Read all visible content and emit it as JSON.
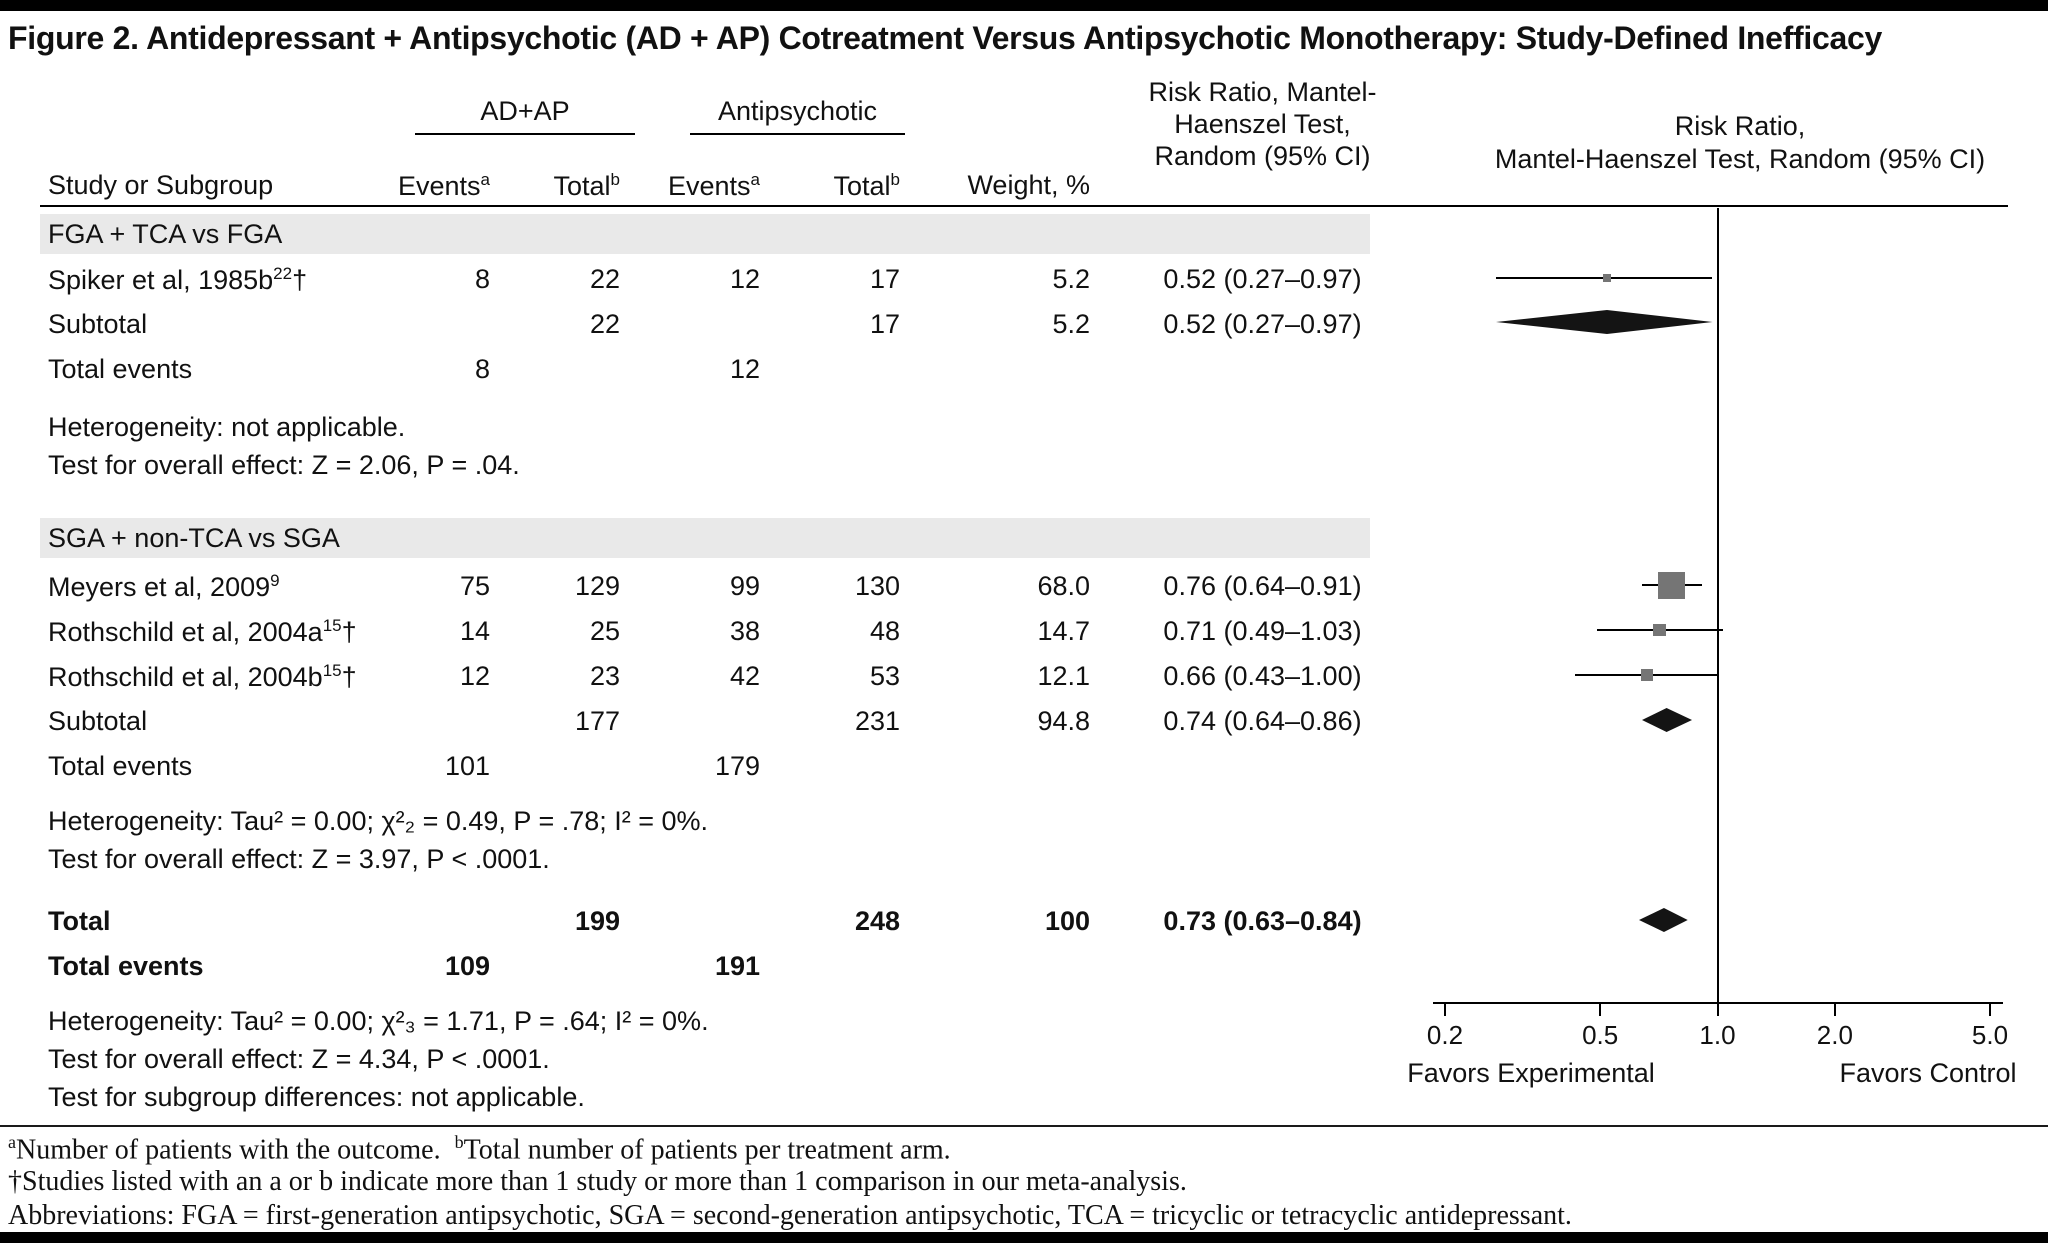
{
  "figure": {
    "title": "Figure 2. Antidepressant + Antipsychotic (AD + AP) Cotreatment Versus Antipsychotic Monotherapy: Study-Defined Inefficacy"
  },
  "table": {
    "col_group1": "AD+AP",
    "col_group2": "Antipsychotic",
    "col_study": "Study or Subgroup",
    "col_events": "Events",
    "col_events_sup": "a",
    "col_total": "Total",
    "col_total_sup": "b",
    "col_weight": "Weight, %",
    "col_rr_line1": "Risk Ratio, Mantel-",
    "col_rr_line2": "Haenszel Test,",
    "col_rr_line3": "Random (95% CI)",
    "col_plot_line1": "Risk Ratio,",
    "col_plot_line2": "Mantel-Haenszel Test, Random (95% CI)",
    "section1": {
      "band": "FGA + TCA vs FGA",
      "row1": {
        "study": "Spiker et al, 1985b",
        "sup": "22",
        "dagger": "†",
        "e1": "8",
        "t1": "22",
        "e2": "12",
        "t2": "17",
        "w": "5.2",
        "rr": "0.52 (0.27–0.97)"
      },
      "subtotal": {
        "label": "Subtotal",
        "t1": "22",
        "t2": "17",
        "w": "5.2",
        "rr": "0.52 (0.27–0.97)"
      },
      "total_events": {
        "label": "Total events",
        "e1": "8",
        "e2": "12"
      },
      "het": "Heterogeneity: not applicable.",
      "test": "Test for overall effect: Z = 2.06, P = .04."
    },
    "section2": {
      "band": "SGA + non-TCA vs SGA",
      "row1": {
        "study": "Meyers et al, 2009",
        "sup": "9",
        "dagger": "",
        "e1": "75",
        "t1": "129",
        "e2": "99",
        "t2": "130",
        "w": "68.0",
        "rr": "0.76 (0.64–0.91)"
      },
      "row2": {
        "study": "Rothschild et al, 2004a",
        "sup": "15",
        "dagger": "†",
        "e1": "14",
        "t1": "25",
        "e2": "38",
        "t2": "48",
        "w": "14.7",
        "rr": "0.71 (0.49–1.03)"
      },
      "row3": {
        "study": "Rothschild et al, 2004b",
        "sup": "15",
        "dagger": "†",
        "e1": "12",
        "t1": "23",
        "e2": "42",
        "t2": "53",
        "w": "12.1",
        "rr": "0.66 (0.43–1.00)"
      },
      "subtotal": {
        "label": "Subtotal",
        "t1": "177",
        "t2": "231",
        "w": "94.8",
        "rr": "0.74 (0.64–0.86)"
      },
      "total_events": {
        "label": "Total events",
        "e1": "101",
        "e2": "179"
      },
      "het": "Heterogeneity: Tau² = 0.00; χ²₂ = 0.49, P = .78; I² = 0%.",
      "test": "Test for overall effect: Z = 3.97, P < .0001."
    },
    "overall": {
      "total": {
        "label": "Total",
        "t1": "199",
        "t2": "248",
        "w": "100",
        "rr": "0.73 (0.63–0.84)"
      },
      "total_events": {
        "label": "Total events",
        "e1": "109",
        "e2": "191"
      },
      "het": "Heterogeneity: Tau² = 0.00; χ²₃ = 1.71, P = .64; I² = 0%.",
      "test": "Test for overall effect: Z = 4.34, P < .0001.",
      "subgroup": "Test for subgroup differences: not applicable."
    }
  },
  "footnotes": {
    "sup_a": "a",
    "text_a": "Number of patients with the outcome.",
    "sup_b": "b",
    "text_b": "Total number of patients per treatment arm.",
    "dagger_line": "†Studies listed with an a or b indicate more than 1 study or more than 1 comparison in our meta-analysis.",
    "abbrev_line": "Abbreviations: FGA = first-generation antipsychotic, SGA = second-generation antipsychotic, TCA = tricyclic or tetracyclic antidepressant."
  },
  "chart_data": {
    "type": "forest",
    "title": "Risk Ratio, Mantel-Haenszel Test, Random (95% CI)",
    "x_scale": "log",
    "x_ticks": [
      0.2,
      0.5,
      1.0,
      2.0,
      5.0
    ],
    "null_line": 1.0,
    "x_label_left": "Favors Experimental",
    "x_label_right": "Favors Control",
    "studies": [
      {
        "name": "Spiker et al, 1985b",
        "group": "FGA + TCA vs FGA",
        "events_adap": 8,
        "total_adap": 22,
        "events_ap": 12,
        "total_ap": 17,
        "weight_pct": 5.2,
        "rr": 0.52,
        "ci_low": 0.27,
        "ci_high": 0.97
      },
      {
        "name": "Meyers et al, 2009",
        "group": "SGA + non-TCA vs SGA",
        "events_adap": 75,
        "total_adap": 129,
        "events_ap": 99,
        "total_ap": 130,
        "weight_pct": 68.0,
        "rr": 0.76,
        "ci_low": 0.64,
        "ci_high": 0.91
      },
      {
        "name": "Rothschild et al, 2004a",
        "group": "SGA + non-TCA vs SGA",
        "events_adap": 14,
        "total_adap": 25,
        "events_ap": 38,
        "total_ap": 48,
        "weight_pct": 14.7,
        "rr": 0.71,
        "ci_low": 0.49,
        "ci_high": 1.03
      },
      {
        "name": "Rothschild et al, 2004b",
        "group": "SGA + non-TCA vs SGA",
        "events_adap": 12,
        "total_adap": 23,
        "events_ap": 42,
        "total_ap": 53,
        "weight_pct": 12.1,
        "rr": 0.66,
        "ci_low": 0.43,
        "ci_high": 1.0
      }
    ],
    "subtotals": [
      {
        "name": "Subtotal FGA + TCA vs FGA",
        "total_adap": 22,
        "total_ap": 17,
        "weight_pct": 5.2,
        "rr": 0.52,
        "ci_low": 0.27,
        "ci_high": 0.97,
        "total_events_adap": 8,
        "total_events_ap": 12
      },
      {
        "name": "Subtotal SGA + non-TCA vs SGA",
        "total_adap": 177,
        "total_ap": 231,
        "weight_pct": 94.8,
        "rr": 0.74,
        "ci_low": 0.64,
        "ci_high": 0.86,
        "total_events_adap": 101,
        "total_events_ap": 179
      }
    ],
    "overall": {
      "name": "Total",
      "total_adap": 199,
      "total_ap": 248,
      "weight_pct": 100,
      "rr": 0.73,
      "ci_low": 0.63,
      "ci_high": 0.84,
      "total_events_adap": 109,
      "total_events_ap": 191
    }
  },
  "colors": {
    "square": "#757575",
    "diamond": "#141414",
    "band": "#e9e9e9",
    "bar": "#000000"
  }
}
